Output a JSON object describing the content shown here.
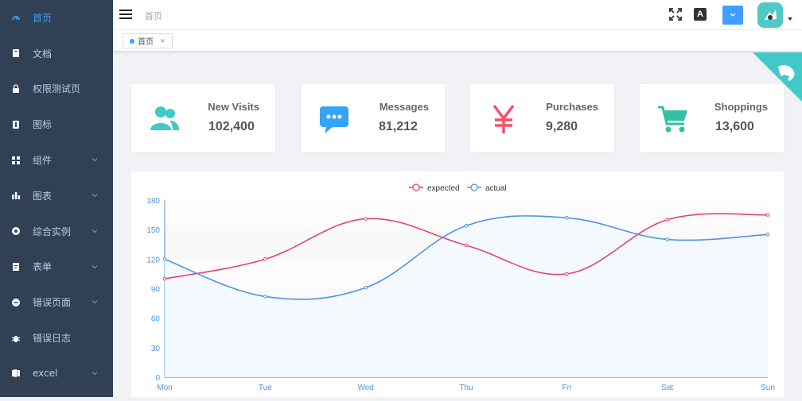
{
  "sidebar": {
    "items": [
      {
        "label": "首页",
        "icon": "dashboard-icon",
        "active": true,
        "expandable": false
      },
      {
        "label": "文档",
        "icon": "documentation-icon",
        "active": false,
        "expandable": false
      },
      {
        "label": "权限测试页",
        "icon": "lock-icon",
        "active": false,
        "expandable": false
      },
      {
        "label": "图标",
        "icon": "icon-icon",
        "active": false,
        "expandable": false
      },
      {
        "label": "组件",
        "icon": "component-icon",
        "active": false,
        "expandable": true
      },
      {
        "label": "图表",
        "icon": "chart-icon",
        "active": false,
        "expandable": true
      },
      {
        "label": "综合实例",
        "icon": "example-icon",
        "active": false,
        "expandable": true
      },
      {
        "label": "表单",
        "icon": "form-icon",
        "active": false,
        "expandable": true
      },
      {
        "label": "错误页面",
        "icon": "error-icon",
        "active": false,
        "expandable": true
      },
      {
        "label": "错误日志",
        "icon": "bug-icon",
        "active": false,
        "expandable": false
      },
      {
        "label": "excel",
        "icon": "excel-icon",
        "active": false,
        "expandable": true
      }
    ]
  },
  "navbar": {
    "breadcrumb": "首页",
    "lang_icon_text": "A"
  },
  "tags": {
    "items": [
      {
        "label": "首页",
        "close": "×"
      }
    ]
  },
  "cards": [
    {
      "label": "New Visits",
      "value": "102,400",
      "icon": "peoples-icon",
      "color": "#40c9c6"
    },
    {
      "label": "Messages",
      "value": "81,212",
      "icon": "message-icon",
      "color": "#36a3f7"
    },
    {
      "label": "Purchases",
      "value": "9,280",
      "icon": "money-icon",
      "color": "#f4516c"
    },
    {
      "label": "Shoppings",
      "value": "13,600",
      "icon": "shopping-cart-icon",
      "color": "#34bfa3"
    }
  ],
  "colors": {
    "sidebar_bg": "#304156",
    "sidebar_text": "#bfcbd9",
    "accent": "#409eff",
    "expected": "#e6436b",
    "actual": "#4e94e3"
  },
  "chart_data": {
    "type": "line",
    "categories": [
      "Mon",
      "Tue",
      "Wed",
      "Thu",
      "Fri",
      "Sat",
      "Sun"
    ],
    "series": [
      {
        "name": "expected",
        "values": [
          100,
          120,
          161,
          134,
          105,
          160,
          165
        ]
      },
      {
        "name": "actual",
        "values": [
          120,
          82,
          91,
          154,
          162,
          140,
          145
        ]
      }
    ],
    "yticks": [
      0,
      30,
      60,
      90,
      120,
      150,
      180
    ],
    "ylim": [
      0,
      180
    ],
    "legend": "top-center",
    "smooth": true
  }
}
